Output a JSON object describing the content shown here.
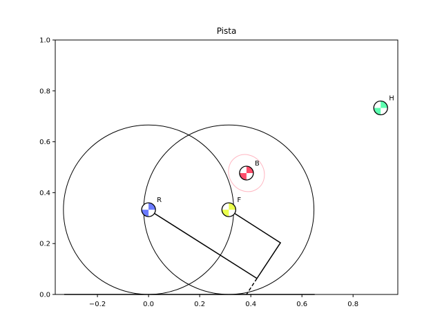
{
  "chart_data": {
    "type": "scatter",
    "title": "Pista",
    "xlabel": "",
    "ylabel": "",
    "xlim": [
      -0.365,
      0.975
    ],
    "ylim": [
      0.0,
      1.0
    ],
    "grid": false,
    "xticks": [
      -0.2,
      0.0,
      0.2,
      0.4,
      0.6,
      0.8
    ],
    "xtick_labels": [
      "−0.2",
      "0.0",
      "0.2",
      "0.4",
      "0.6",
      "0.8"
    ],
    "yticks": [
      0.0,
      0.2,
      0.4,
      0.6,
      0.8,
      1.0
    ],
    "ytick_labels": [
      "0.0",
      "0.2",
      "0.4",
      "0.6",
      "0.8",
      "1.0"
    ],
    "circles": [
      {
        "cx": 0.0,
        "cy": 0.333,
        "r": 0.333,
        "color": "#000000"
      },
      {
        "cx": 0.314,
        "cy": 0.333,
        "r": 0.333,
        "color": "#000000"
      }
    ],
    "ellipse": {
      "cx": 0.383,
      "cy": 0.477,
      "rx": 0.068,
      "ry": 0.075,
      "color": "#ffb6c1"
    },
    "polyline_solid": [
      [
        0.0,
        0.333
      ],
      [
        0.424,
        0.063
      ]
    ],
    "polyline_solid_2": [
      [
        0.314,
        0.333
      ],
      [
        0.516,
        0.203
      ],
      [
        0.424,
        0.063
      ]
    ],
    "polyline_dashed": [
      [
        0.424,
        0.063
      ],
      [
        0.383,
        0.0
      ]
    ],
    "baseline": [
      [
        -0.33,
        0.0
      ],
      [
        0.65,
        0.0
      ]
    ],
    "markers": [
      {
        "label": "R",
        "x": 0.0,
        "y": 0.333,
        "color": "#6b7bff"
      },
      {
        "label": "F",
        "x": 0.314,
        "y": 0.333,
        "color": "#eaff4d"
      },
      {
        "label": "B",
        "x": 0.383,
        "y": 0.477,
        "color": "#ff4d6a"
      },
      {
        "label": "H",
        "x": 0.908,
        "y": 0.733,
        "color": "#5cffb0"
      }
    ]
  }
}
